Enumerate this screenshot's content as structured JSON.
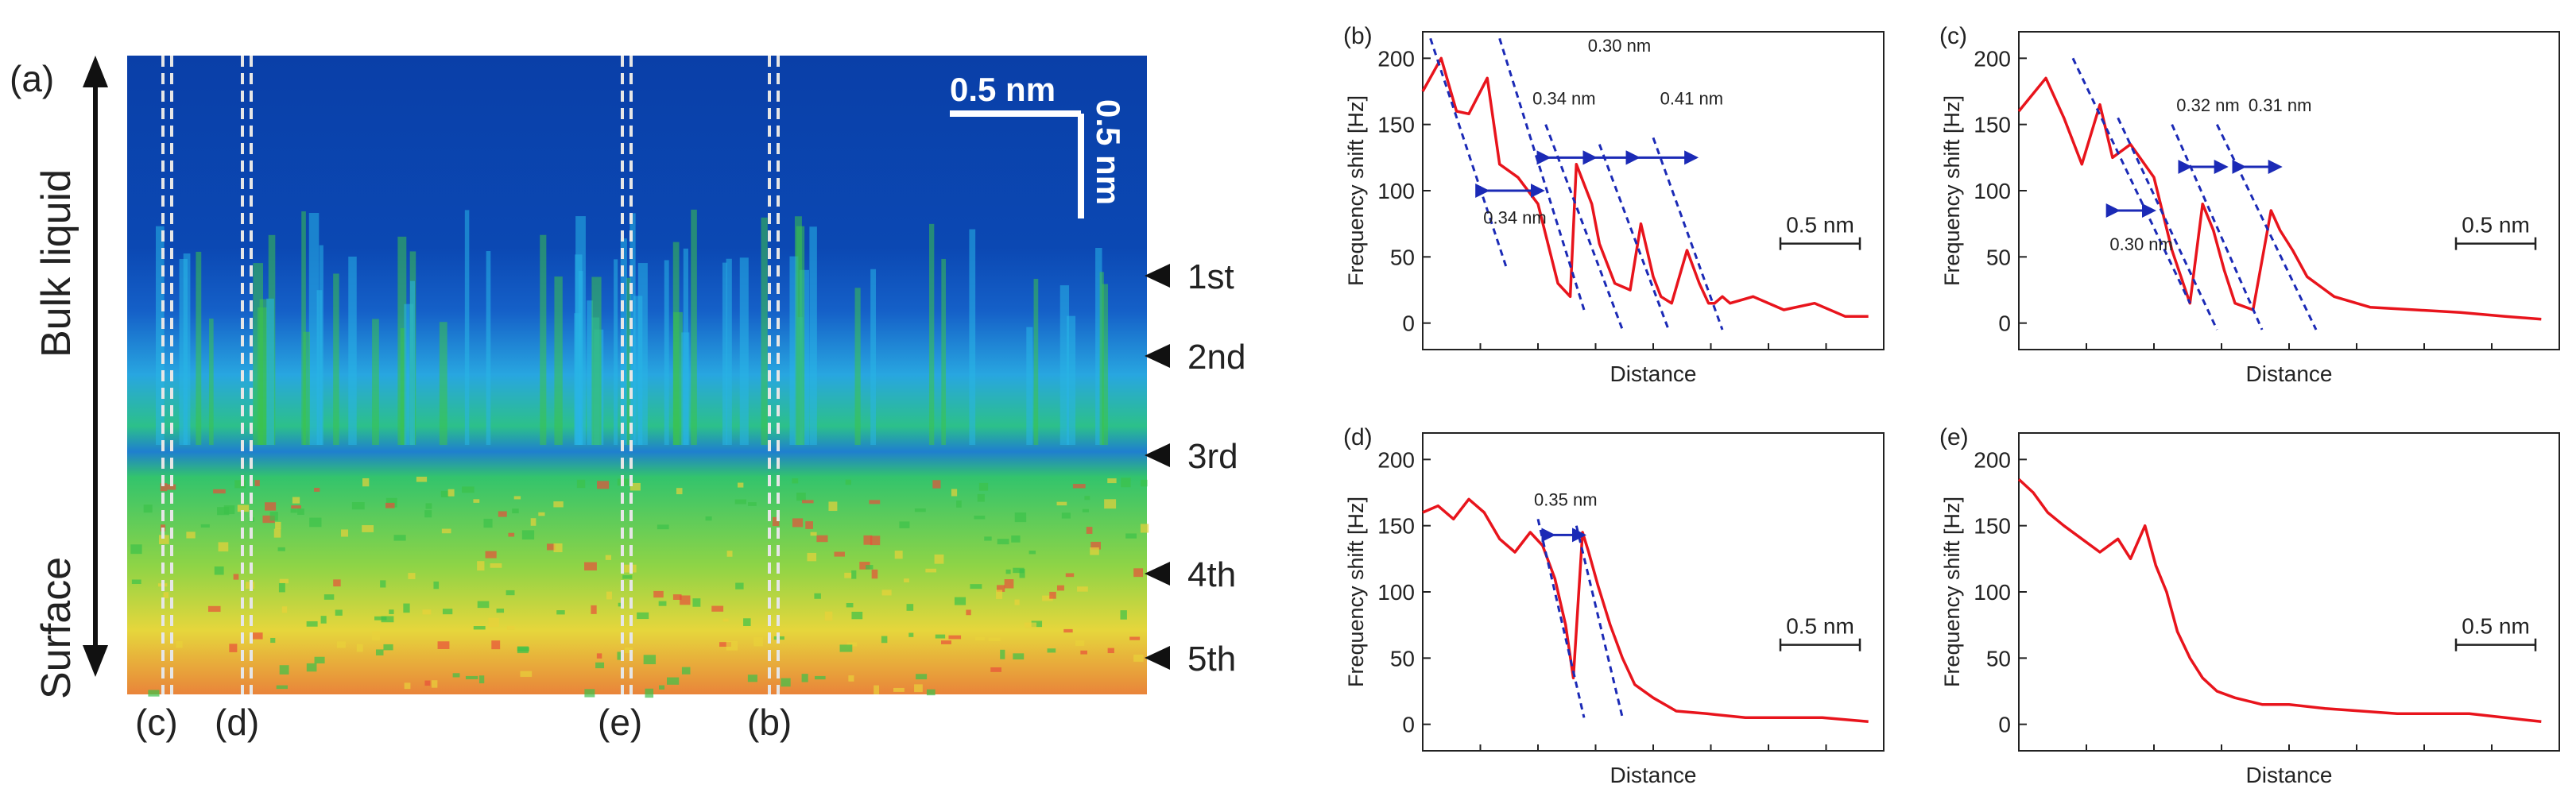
{
  "figure": {
    "panel_a": {
      "label": "(a)",
      "side_labels": {
        "top": "Bulk liquid",
        "bottom": "Surface"
      },
      "scalebar_h": "0.5 nm",
      "scalebar_v": "0.5 nm",
      "layers": [
        "1st",
        "2nd",
        "3rd",
        "4th",
        "5th"
      ],
      "cut_labels": [
        "(c)",
        "(d)",
        "(e)",
        "(b)"
      ],
      "colors": {
        "low": "#0a3fa8",
        "cyan": "#28b4e6",
        "green": "#3cc24a",
        "yellow": "#e8d23a",
        "high": "#e8503a"
      }
    }
  },
  "chart_data": [
    {
      "panel": "(b)",
      "type": "line",
      "xlabel": "Distance",
      "ylabel": "Frequency shift [Hz]",
      "yticks": [
        0,
        50,
        100,
        150,
        200
      ],
      "ylim": [
        -20,
        220
      ],
      "scalebar": "0.5 nm",
      "series": [
        {
          "name": "frequency shift",
          "color": "#e8141c",
          "x": [
            0,
            0.12,
            0.22,
            0.3,
            0.42,
            0.5,
            0.62,
            0.75,
            0.88,
            0.96,
            1.0,
            1.1,
            1.15,
            1.25,
            1.35,
            1.42,
            1.46,
            1.5,
            1.55,
            1.62,
            1.72,
            1.8,
            1.86,
            1.9,
            1.95,
            2.0,
            2.15,
            2.35,
            2.55,
            2.75,
            2.9
          ],
          "y": [
            175,
            200,
            160,
            158,
            185,
            120,
            110,
            90,
            30,
            20,
            120,
            90,
            60,
            30,
            25,
            75,
            55,
            35,
            20,
            15,
            55,
            30,
            15,
            15,
            20,
            15,
            20,
            10,
            15,
            5,
            5
          ]
        }
      ],
      "annotations": [
        "0.34 nm",
        "0.34 nm",
        "0.30 nm",
        "0.41 nm"
      ]
    },
    {
      "panel": "(c)",
      "type": "line",
      "xlabel": "Distance",
      "ylabel": "Frequency shift [Hz]",
      "yticks": [
        0,
        50,
        100,
        150,
        200
      ],
      "ylim": [
        -20,
        220
      ],
      "scalebar": "0.5 nm",
      "series": [
        {
          "name": "frequency shift",
          "color": "#e8141c",
          "x": [
            0,
            0.15,
            0.25,
            0.35,
            0.45,
            0.52,
            0.62,
            0.75,
            0.85,
            0.95,
            1.02,
            1.08,
            1.14,
            1.2,
            1.3,
            1.4,
            1.45,
            1.52,
            1.6,
            1.75,
            1.95,
            2.2,
            2.45,
            2.7,
            2.9
          ],
          "y": [
            160,
            185,
            155,
            120,
            165,
            125,
            135,
            110,
            55,
            15,
            90,
            70,
            40,
            15,
            10,
            85,
            70,
            55,
            35,
            20,
            12,
            10,
            8,
            5,
            3
          ]
        }
      ],
      "annotations": [
        "0.30 nm",
        "0.32 nm",
        "0.31 nm"
      ]
    },
    {
      "panel": "(d)",
      "type": "line",
      "xlabel": "Distance",
      "ylabel": "Frequency shift [Hz]",
      "yticks": [
        0,
        50,
        100,
        150,
        200
      ],
      "ylim": [
        -20,
        220
      ],
      "scalebar": "0.5 nm",
      "series": [
        {
          "name": "frequency shift",
          "color": "#e8141c",
          "x": [
            0,
            0.1,
            0.2,
            0.3,
            0.4,
            0.5,
            0.6,
            0.7,
            0.78,
            0.86,
            0.93,
            0.98,
            1.04,
            1.08,
            1.14,
            1.22,
            1.3,
            1.38,
            1.5,
            1.65,
            1.85,
            2.1,
            2.35,
            2.6,
            2.9
          ],
          "y": [
            160,
            165,
            155,
            170,
            160,
            140,
            130,
            145,
            135,
            110,
            75,
            35,
            145,
            130,
            105,
            75,
            50,
            30,
            20,
            10,
            8,
            5,
            5,
            5,
            2
          ]
        }
      ],
      "annotations": [
        "0.35 nm"
      ]
    },
    {
      "panel": "(e)",
      "type": "line",
      "xlabel": "Distance",
      "ylabel": "Frequency shift [Hz]",
      "yticks": [
        0,
        50,
        100,
        150,
        200
      ],
      "ylim": [
        -20,
        220
      ],
      "scalebar": "0.5 nm",
      "series": [
        {
          "name": "frequency shift",
          "color": "#e8141c",
          "x": [
            0,
            0.08,
            0.16,
            0.25,
            0.35,
            0.45,
            0.55,
            0.62,
            0.7,
            0.76,
            0.82,
            0.88,
            0.95,
            1.02,
            1.1,
            1.2,
            1.35,
            1.5,
            1.7,
            1.9,
            2.1,
            2.3,
            2.5,
            2.7,
            2.9
          ],
          "y": [
            185,
            175,
            160,
            150,
            140,
            130,
            140,
            125,
            150,
            120,
            100,
            70,
            50,
            35,
            25,
            20,
            15,
            15,
            12,
            10,
            8,
            8,
            8,
            5,
            2
          ]
        }
      ],
      "annotations": []
    }
  ]
}
